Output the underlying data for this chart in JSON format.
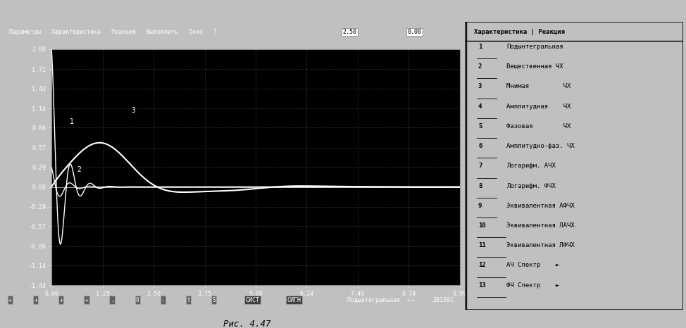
{
  "background_color": "#c0c0c0",
  "plot_bg_color": "#000000",
  "grid_color": "#555555",
  "curve_color": "#ffffff",
  "x_ticks": [
    0.0,
    1.25,
    2.5,
    3.75,
    5.0,
    6.24,
    7.49,
    8.74,
    9.99
  ],
  "y_ticks": [
    -1.43,
    -1.14,
    -0.86,
    -0.57,
    -0.29,
    0.0,
    0.29,
    0.57,
    0.86,
    1.14,
    1.43,
    1.71,
    2.0
  ],
  "xlim": [
    0.0,
    9.99
  ],
  "ylim": [
    -1.43,
    2.0
  ],
  "top_menu_text": "Параметры   Характеристика   Реакция   Выполнить   Окно   ?",
  "top_val1": "2.50",
  "top_val2": "0.00",
  "bottom_status": "Подынтегральная  я",
  "bottom_code": "281301",
  "menu_header": "Характеристика | Реакция",
  "menu_items": [
    [
      "1",
      "Подынтегральная"
    ],
    [
      "2",
      "Вещественная ЧХ"
    ],
    [
      "3",
      "Мнимая         ЧХ"
    ],
    [
      "4",
      "Амплитудная    ЧХ"
    ],
    [
      "5",
      "Фазовая        ЧХ"
    ],
    [
      "6",
      "Амплитудно-фаз. ЧХ"
    ],
    [
      "7",
      "Логарифм. АЧХ"
    ],
    [
      "8",
      "Логарифм. ФЧХ"
    ],
    [
      "9",
      "Эквивалентная АФЧХ"
    ],
    [
      "10",
      "Эквивалентная ЛАЧХ"
    ],
    [
      "11",
      "Эквивалентная ЛФЧХ"
    ],
    [
      "12",
      "АЧ Спектр    ►"
    ],
    [
      "13",
      "ФЧ Спектр    ►"
    ]
  ],
  "caption": "Рис. 4.47",
  "label1": "1",
  "label2": "2",
  "label3": "3"
}
